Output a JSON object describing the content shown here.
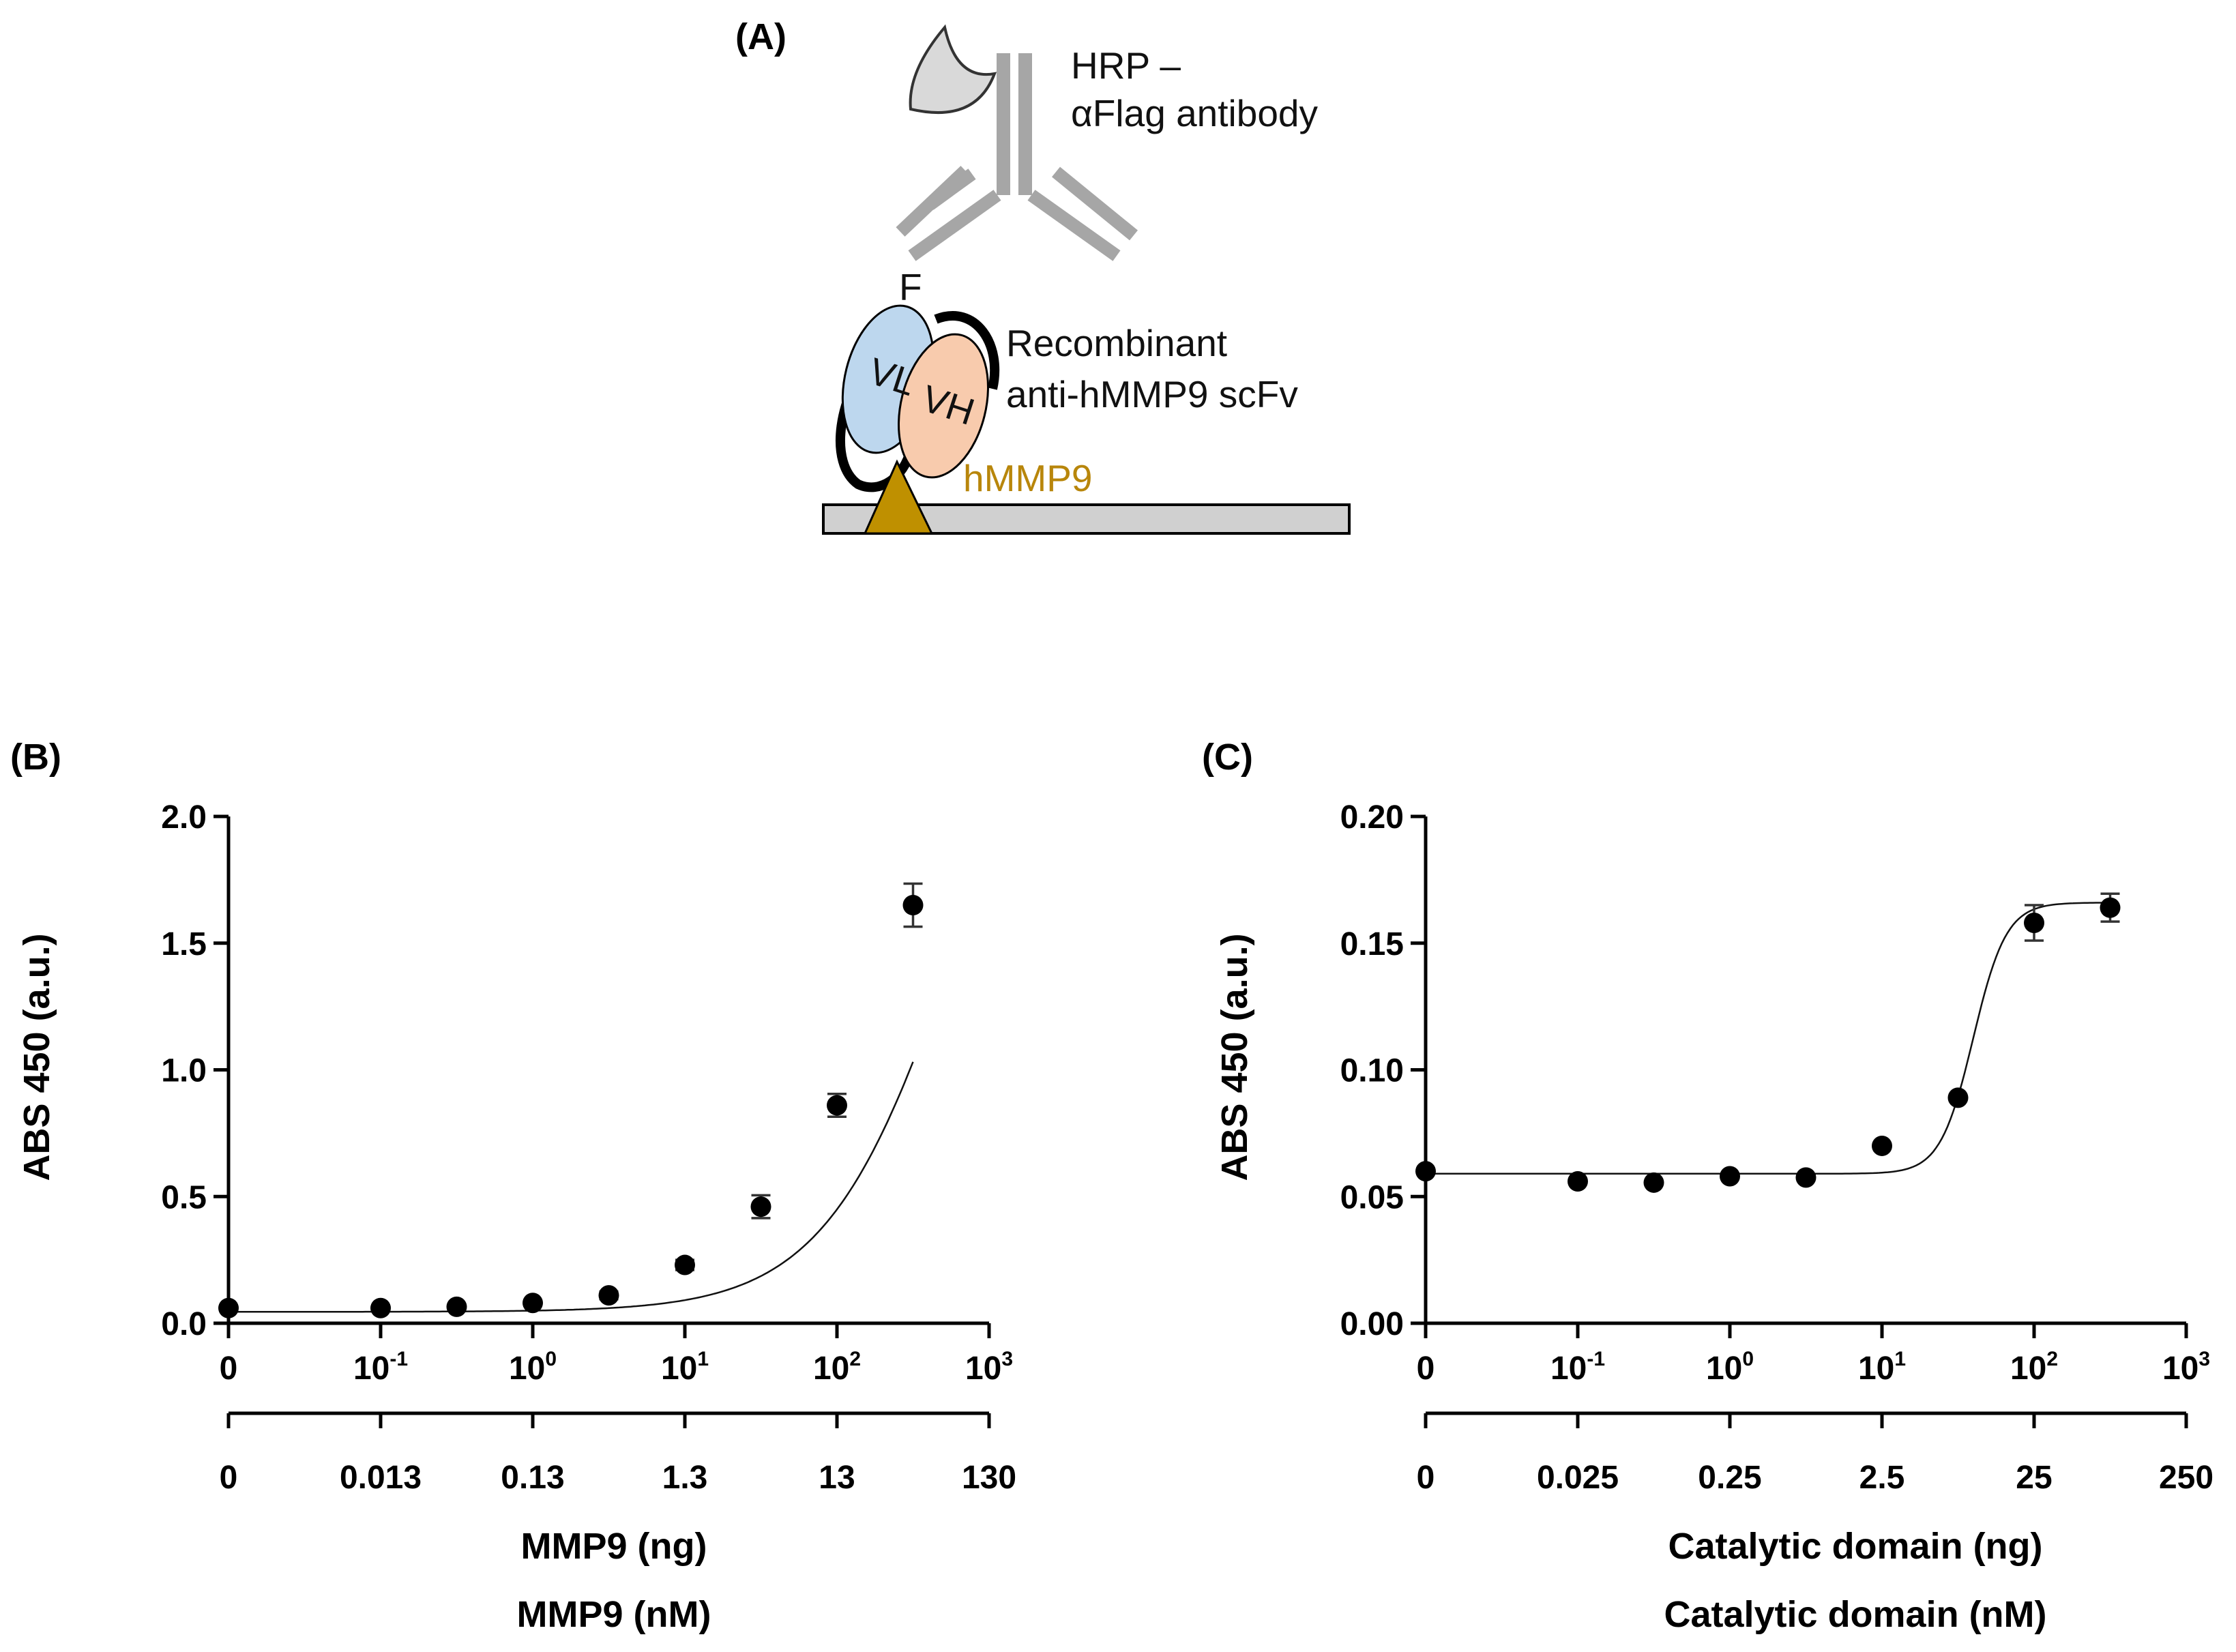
{
  "panel_a": {
    "label": "(A)",
    "antibody_label_line1": "HRP –",
    "antibody_label_line2": "αFlag antibody",
    "flag_label": "F",
    "scfv_label_line1": "Recombinant",
    "scfv_label_line2": "anti-hMMP9 scFv",
    "vl_label": "VL",
    "vh_label": "VH",
    "antigen_label": "hMMP9",
    "colors": {
      "antibody": "#a6a6a6",
      "hrp": "#d9d9d9",
      "vl_domain": "#bdd7ee",
      "vh_domain": "#f8cbad",
      "antigen": "#bf9000",
      "plate": "#d0d0d0"
    }
  },
  "chart_data": [
    {
      "panel": "(B)",
      "type": "scatter",
      "fit": "sigmoidal curve",
      "ylabel": "ABS 450 (a.u.)",
      "ylim": [
        0,
        2.0
      ],
      "y_ticks": [
        "0.0",
        "0.5",
        "1.0",
        "1.5",
        "2.0"
      ],
      "xscale": "log",
      "xlim_log10": [
        -2,
        3
      ],
      "x_ticks_top": [
        {
          "base": "0",
          "exp": ""
        },
        {
          "base": "10",
          "exp": "-1"
        },
        {
          "base": "10",
          "exp": "0"
        },
        {
          "base": "10",
          "exp": "1"
        },
        {
          "base": "10",
          "exp": "2"
        },
        {
          "base": "10",
          "exp": "3"
        }
      ],
      "x_ticks_bottom": [
        "0",
        "0.013",
        "0.13",
        "1.3",
        "13",
        "130"
      ],
      "xlabel_top_axis": "MMP9 (ng)",
      "xlabel_bottom_axis": "MMP9 (nM)",
      "x_log10": [
        -2,
        -1,
        -0.5,
        0,
        0.5,
        1,
        1.5,
        2,
        2.5
      ],
      "values": [
        0.06,
        0.06,
        0.065,
        0.08,
        0.11,
        0.23,
        0.46,
        0.86,
        1.65
      ],
      "errors": [
        0.01,
        0.01,
        0.01,
        0.01,
        0.015,
        0.02,
        0.045,
        0.045,
        0.085
      ],
      "curve": {
        "bottom": 0.045,
        "top": 3.0,
        "log_ec50": 2.8,
        "hill": 1.0
      }
    },
    {
      "panel": "(C)",
      "type": "scatter",
      "fit": "sigmoidal curve",
      "ylabel": "ABS 450 (a.u.)",
      "ylim": [
        0,
        0.2
      ],
      "y_ticks": [
        "0.00",
        "0.05",
        "0.10",
        "0.15",
        "0.20"
      ],
      "xscale": "log",
      "xlim_log10": [
        -2,
        3
      ],
      "x_ticks_top": [
        {
          "base": "0",
          "exp": ""
        },
        {
          "base": "10",
          "exp": "-1"
        },
        {
          "base": "10",
          "exp": "0"
        },
        {
          "base": "10",
          "exp": "1"
        },
        {
          "base": "10",
          "exp": "2"
        },
        {
          "base": "10",
          "exp": "3"
        }
      ],
      "x_ticks_bottom": [
        "0",
        "0.025",
        "0.25",
        "2.5",
        "25",
        "250"
      ],
      "xlabel_top_axis": "Catalytic domain (ng)",
      "xlabel_bottom_axis": "Catalytic domain (nM)",
      "x_log10": [
        -2,
        -1,
        -0.5,
        0,
        0.5,
        1,
        1.5,
        2,
        2.5
      ],
      "values": [
        0.06,
        0.056,
        0.0555,
        0.058,
        0.0575,
        0.07,
        0.089,
        0.158,
        0.164
      ],
      "errors": [
        0.0,
        0.0,
        0.0,
        0.0,
        0.0,
        0.0,
        0.0,
        0.007,
        0.0055
      ],
      "curve": {
        "bottom": 0.059,
        "top": 0.166,
        "log_ec50": 1.6,
        "hill": 4.0
      }
    }
  ]
}
